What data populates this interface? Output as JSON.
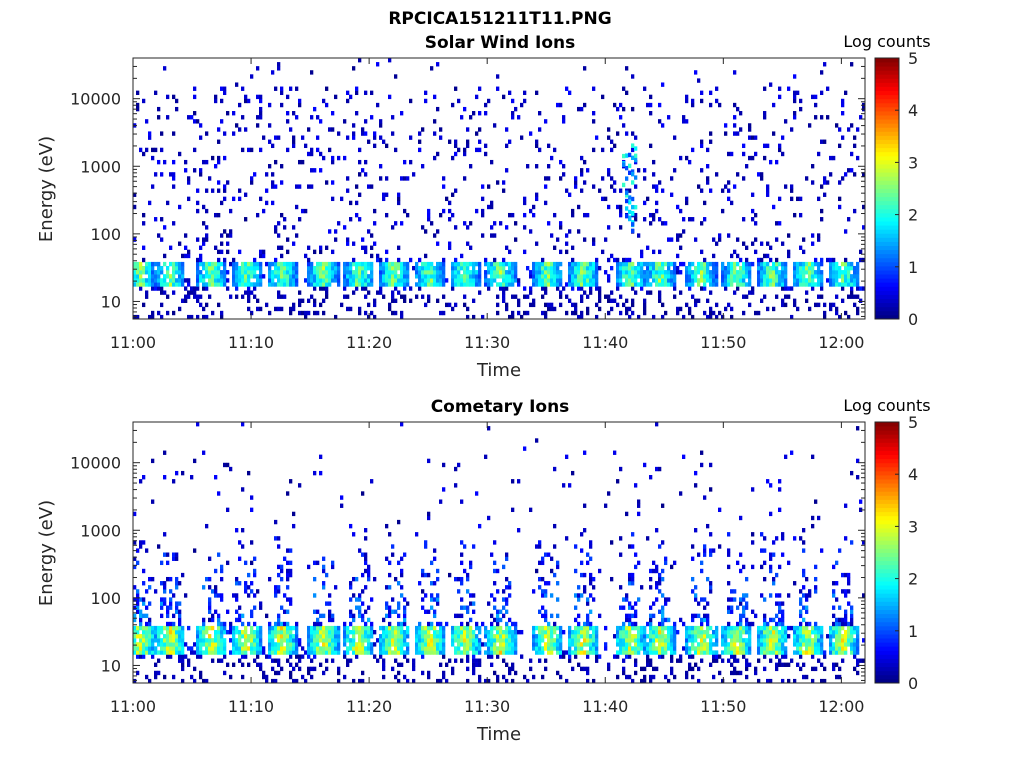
{
  "figure": {
    "title": "RPCICA151211T11.PNG"
  },
  "chart_data": [
    {
      "type": "heatmap",
      "title": "Solar Wind Ions",
      "xlabel": "Time",
      "ylabel": "Energy (eV)",
      "x_ticks": [
        "11:00",
        "11:10",
        "11:20",
        "11:30",
        "11:40",
        "11:50",
        "12:00"
      ],
      "x_range_minutes": [
        0,
        62
      ],
      "y_ticks": [
        "10",
        "100",
        "1000",
        "10000"
      ],
      "y_range": [
        5.5,
        40000
      ],
      "y_scale": "log",
      "colorbar": {
        "label": "Log counts",
        "ticks": [
          "0",
          "1",
          "2",
          "3",
          "4",
          "5"
        ],
        "range": [
          0,
          5
        ],
        "colormap": "jet"
      },
      "band_centers_minutes": [
        0.5,
        3,
        6.5,
        9.5,
        12.5,
        16,
        19,
        22,
        25,
        28,
        31,
        35,
        38,
        42,
        44.5,
        48,
        51,
        54,
        57,
        60
      ],
      "band_energy_range_ev": [
        17,
        40
      ],
      "band_peak_log_counts": 2.6,
      "background_density": 0.09,
      "seed": 7
    },
    {
      "type": "heatmap",
      "title": "Cometary Ions",
      "xlabel": "Time",
      "ylabel": "Energy (eV)",
      "x_ticks": [
        "11:00",
        "11:10",
        "11:20",
        "11:30",
        "11:40",
        "11:50",
        "12:00"
      ],
      "x_range_minutes": [
        0,
        62
      ],
      "y_ticks": [
        "10",
        "100",
        "1000",
        "10000"
      ],
      "y_range": [
        5.5,
        40000
      ],
      "y_scale": "log",
      "colorbar": {
        "label": "Log counts",
        "ticks": [
          "0",
          "1",
          "2",
          "3",
          "4",
          "5"
        ],
        "range": [
          0,
          5
        ],
        "colormap": "jet"
      },
      "band_centers_minutes": [
        0.5,
        3,
        6.5,
        9.5,
        12.5,
        16,
        19,
        22,
        25,
        28,
        31,
        35,
        38,
        42,
        44.5,
        48,
        51,
        54,
        57,
        60
      ],
      "band_energy_range_ev": [
        15,
        40
      ],
      "band_peak_log_counts": 3.1,
      "background_density": 0.02,
      "seed": 19
    }
  ]
}
